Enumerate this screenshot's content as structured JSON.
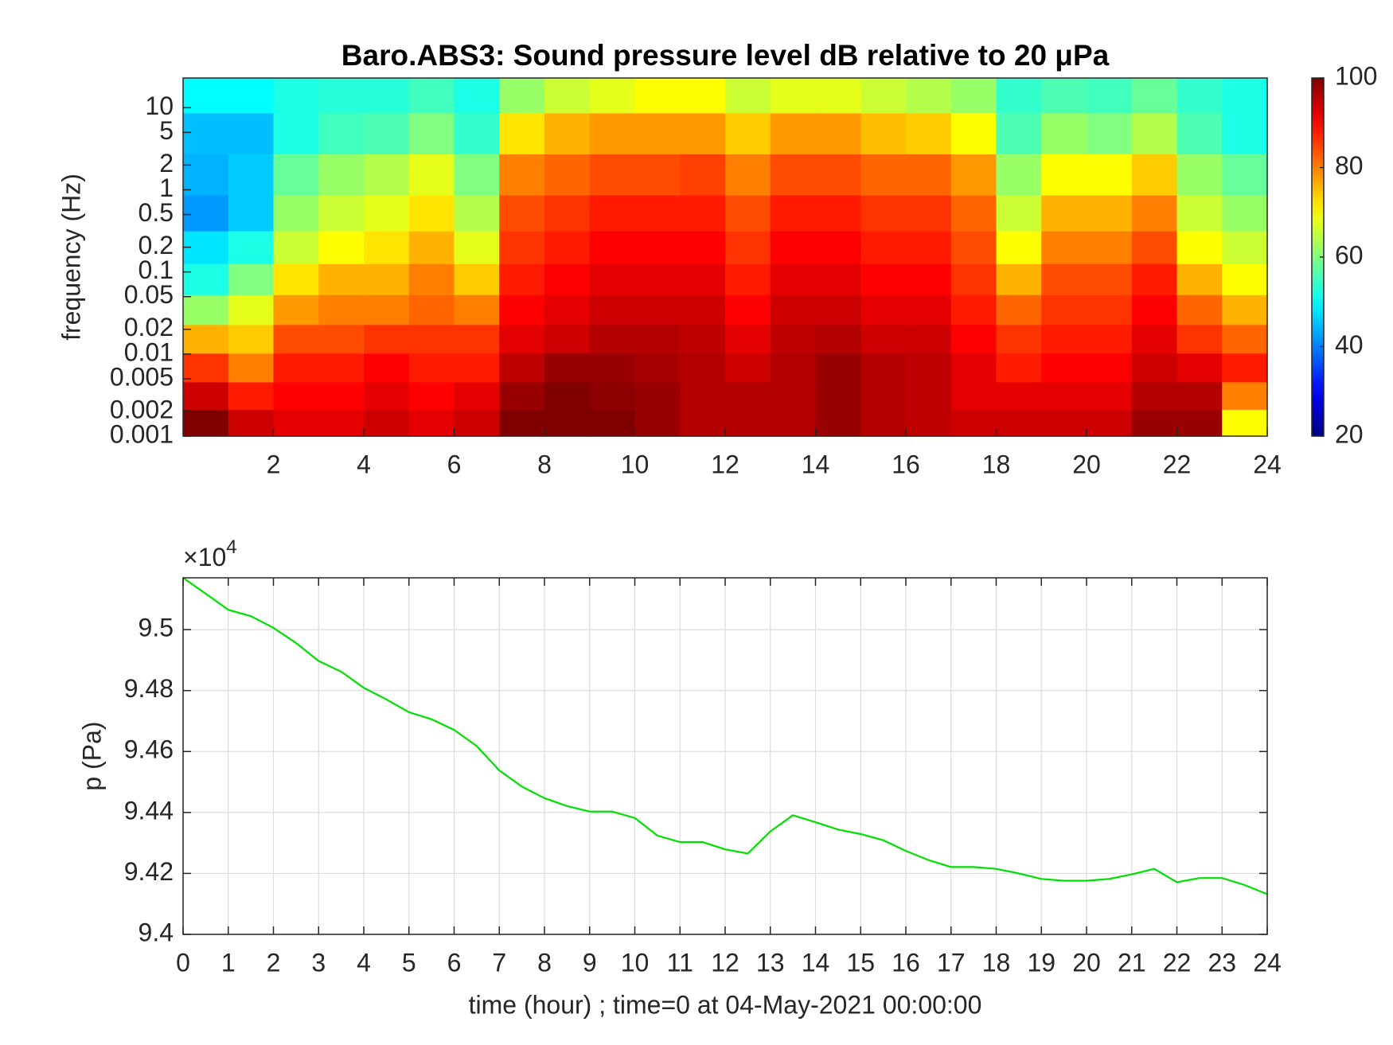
{
  "chart_data": [
    {
      "type": "heatmap",
      "title": "Baro.ABS3: Sound pressure level dB relative to 20 μPa",
      "ylabel": "frequency (Hz)",
      "xlim": [
        0,
        24
      ],
      "xticks": [
        2,
        4,
        6,
        8,
        10,
        12,
        14,
        16,
        18,
        20,
        22,
        24
      ],
      "ylim": [
        0.001,
        23
      ],
      "log_y": true,
      "yticks": [
        0.001,
        0.002,
        0.005,
        0.01,
        0.02,
        0.05,
        0.1,
        0.2,
        0.5,
        1,
        2,
        5,
        10
      ],
      "x": [
        0.5,
        1.5,
        2.5,
        3.5,
        4.5,
        5.5,
        6.5,
        7.5,
        8.5,
        9.5,
        10.5,
        11.5,
        12.5,
        13.5,
        14.5,
        15.5,
        16.5,
        17.5,
        18.5,
        19.5,
        20.5,
        21.5,
        22.5,
        23.5
      ],
      "y": [
        0.0015,
        0.003,
        0.007,
        0.015,
        0.035,
        0.08,
        0.2,
        0.5,
        1.5,
        5,
        15
      ],
      "z": [
        [
          100,
          94,
          92,
          92,
          94,
          92,
          94,
          100,
          100,
          100,
          98,
          96,
          96,
          96,
          98,
          96,
          95,
          94,
          94,
          94,
          94,
          98,
          98,
          70
        ],
        [
          94,
          88,
          90,
          90,
          92,
          90,
          92,
          98,
          100,
          99,
          98,
          96,
          96,
          96,
          98,
          96,
          95,
          92,
          92,
          92,
          92,
          96,
          96,
          80
        ],
        [
          86,
          80,
          88,
          88,
          90,
          88,
          88,
          95,
          98,
          98,
          97,
          96,
          94,
          96,
          98,
          96,
          95,
          92,
          88,
          90,
          90,
          94,
          92,
          88
        ],
        [
          76,
          74,
          84,
          84,
          86,
          86,
          86,
          92,
          94,
          96,
          96,
          95,
          92,
          95,
          96,
          94,
          94,
          90,
          86,
          88,
          88,
          92,
          86,
          82
        ],
        [
          62,
          68,
          78,
          80,
          80,
          82,
          80,
          90,
          92,
          94,
          94,
          94,
          90,
          94,
          94,
          92,
          92,
          88,
          82,
          86,
          86,
          90,
          82,
          76
        ],
        [
          52,
          60,
          72,
          76,
          76,
          80,
          74,
          88,
          90,
          92,
          92,
          92,
          88,
          92,
          92,
          90,
          90,
          86,
          76,
          84,
          84,
          88,
          76,
          70
        ],
        [
          48,
          52,
          66,
          70,
          72,
          76,
          68,
          86,
          88,
          90,
          90,
          90,
          86,
          90,
          90,
          88,
          88,
          84,
          70,
          80,
          80,
          84,
          70,
          66
        ],
        [
          42,
          46,
          62,
          66,
          68,
          72,
          64,
          84,
          86,
          88,
          88,
          88,
          84,
          88,
          88,
          86,
          86,
          82,
          66,
          76,
          76,
          80,
          66,
          62
        ],
        [
          44,
          46,
          58,
          62,
          64,
          68,
          60,
          80,
          82,
          84,
          84,
          85,
          80,
          84,
          84,
          82,
          82,
          78,
          62,
          70,
          70,
          74,
          62,
          58
        ],
        [
          45,
          45,
          52,
          55,
          56,
          60,
          54,
          72,
          76,
          78,
          78,
          78,
          74,
          78,
          78,
          75,
          74,
          70,
          56,
          62,
          60,
          64,
          56,
          52
        ],
        [
          50,
          50,
          52,
          53,
          53,
          55,
          52,
          62,
          66,
          68,
          70,
          70,
          66,
          68,
          68,
          66,
          64,
          62,
          54,
          56,
          55,
          58,
          54,
          52
        ]
      ],
      "colormap": "jet",
      "clim": [
        20,
        100
      ],
      "colorbar_ticks": [
        20,
        40,
        60,
        80,
        100
      ]
    },
    {
      "type": "line",
      "xlabel": "time (hour) ; time=0 at 04-May-2021 00:00:00",
      "ylabel": "p (Pa)",
      "y_multiplier": "×10",
      "y_multiplier_exponent": 4,
      "color": "#00e000",
      "grid": true,
      "xlim": [
        0,
        24
      ],
      "xticks": [
        0,
        1,
        2,
        3,
        4,
        5,
        6,
        7,
        8,
        9,
        10,
        11,
        12,
        13,
        14,
        15,
        16,
        17,
        18,
        19,
        20,
        21,
        22,
        23,
        24
      ],
      "ylim": [
        94000,
        95170
      ],
      "yticks": [
        {
          "value": 94000,
          "label": "9.4"
        },
        {
          "value": 94200,
          "label": "9.42"
        },
        {
          "value": 94400,
          "label": "9.44"
        },
        {
          "value": 94600,
          "label": "9.46"
        },
        {
          "value": 94800,
          "label": "9.48"
        },
        {
          "value": 95000,
          "label": "9.5"
        }
      ],
      "x": [
        0,
        0.5,
        1,
        1.5,
        2,
        2.5,
        3,
        3.5,
        4,
        4.5,
        5,
        5.5,
        6,
        6.5,
        7,
        7.5,
        8,
        8.5,
        9,
        9.5,
        10,
        10.5,
        11,
        11.5,
        12,
        12.5,
        13,
        13.5,
        14,
        14.5,
        15,
        15.5,
        16,
        16.5,
        17,
        17.5,
        18,
        18.5,
        19,
        19.5,
        20,
        20.5,
        21,
        21.5,
        22,
        22.5,
        23,
        23.5,
        24
      ],
      "values": [
        95170,
        95118,
        95065,
        95044,
        95006,
        94956,
        94897,
        94862,
        94809,
        94771,
        94729,
        94706,
        94671,
        94618,
        94538,
        94485,
        94447,
        94421,
        94403,
        94403,
        94382,
        94324,
        94303,
        94303,
        94279,
        94265,
        94338,
        94391,
        94368,
        94344,
        94329,
        94309,
        94274,
        94244,
        94221,
        94221,
        94215,
        94200,
        94182,
        94176,
        94176,
        94182,
        94197,
        94215,
        94171,
        94185,
        94185,
        94162,
        94132
      ]
    }
  ]
}
